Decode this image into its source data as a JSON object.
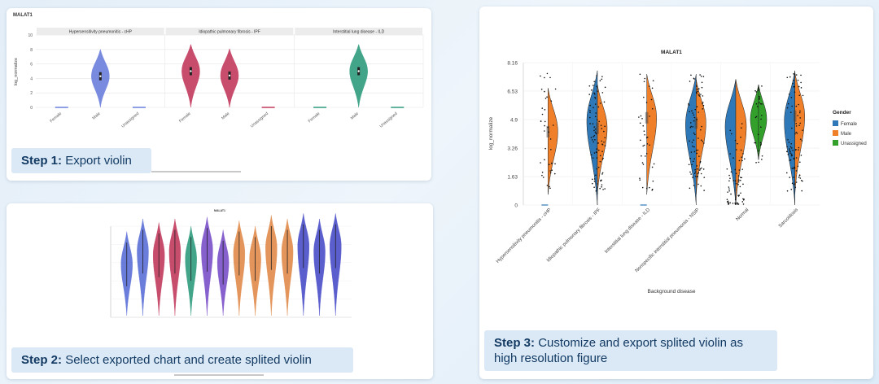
{
  "step1": {
    "prefix": "Step 1:",
    "text": "Export violin"
  },
  "step2": {
    "prefix": "Step 2:",
    "text": "Select exported chart and create splited violin"
  },
  "step3": {
    "prefix": "Step 3:",
    "text": "Customize and export splited violin as high resolution figure"
  },
  "chart_data": [
    {
      "type": "violin",
      "title": "MALAT1",
      "ylabel": "log_normalize",
      "ylim": [
        0,
        10
      ],
      "yticks": [
        0,
        2,
        4,
        6,
        8,
        10
      ],
      "facets": [
        {
          "label": "Hypersensitivity pneumonitis - cHP",
          "categories": [
            "Female",
            "Male",
            "Unassigned"
          ],
          "medians": [
            0,
            4.3,
            0
          ]
        },
        {
          "label": "Idiopathic pulmonary fibrosis - IPF",
          "categories": [
            "Female",
            "Male",
            "Unassigned"
          ],
          "medians": [
            5.0,
            4.4,
            0
          ]
        },
        {
          "label": "Interstitial lung disease - ILD",
          "categories": [
            "Female",
            "Male",
            "Unassigned"
          ],
          "medians": [
            0,
            5.0,
            0
          ]
        }
      ],
      "colors": [
        "#6b7fdc",
        "#c23a5e",
        "#2e9c7e"
      ]
    },
    {
      "type": "violin",
      "title": "MALAT1",
      "series_colors": [
        "#5a6fd6",
        "#c23a5e",
        "#2e9c7e",
        "#7a4fc8",
        "#e08a4a",
        "#4a4ec8"
      ],
      "medians": [
        2.9,
        3.6,
        3.4,
        3.6,
        3.2,
        3.7,
        3.0,
        3.5,
        3.2,
        3.8,
        3.6,
        3.9,
        3.6,
        3.9
      ]
    },
    {
      "type": "split-violin",
      "title": "MALAT1",
      "xlabel": "Background disease",
      "ylabel": "log_normalize",
      "ylim": [
        0,
        8.16
      ],
      "yticks": [
        0,
        1.63,
        3.26,
        4.9,
        6.53,
        8.16
      ],
      "ytick_labels": [
        "0",
        "1.63",
        "3.26",
        "4.9",
        "6.53",
        "8.16"
      ],
      "categories": [
        "Hypersensitivity pneumonitis - cHP",
        "Idiopathic pulmonary fibrosis - IPF",
        "Interstitial lung disease - ILD",
        "Nonspecific interstitial pneumonia - NSIP",
        "Normal",
        "Sarcoidosis"
      ],
      "legend": {
        "title": "Gender",
        "position": "right",
        "entries": [
          {
            "name": "Female",
            "color": "#2f78b7"
          },
          {
            "name": "Male",
            "color": "#f07f2a"
          },
          {
            "name": "Unassigned",
            "color": "#33a02c"
          }
        ]
      },
      "series": [
        {
          "name": "Female",
          "medians": [
            0,
            4.8,
            0,
            4.6,
            4.5,
            4.8
          ]
        },
        {
          "name": "Male",
          "medians": [
            4.2,
            4.4,
            5.0,
            4.7,
            4.5,
            5.1
          ]
        },
        {
          "name": "Unassigned",
          "medians": [
            0,
            0,
            0,
            0,
            4.9,
            0
          ]
        }
      ]
    }
  ]
}
